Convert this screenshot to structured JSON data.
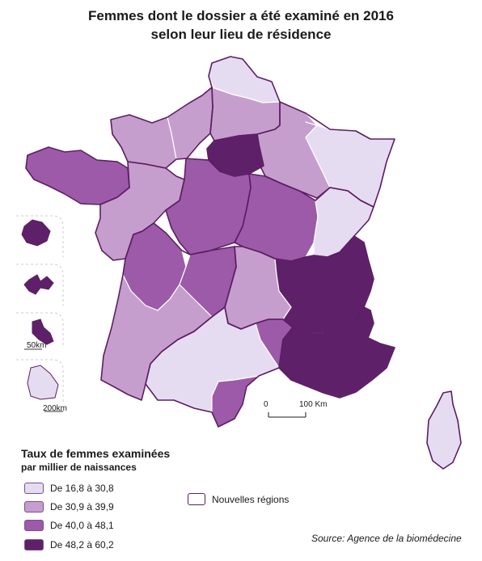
{
  "title_line1": "Femmes dont le dossier a été examiné en 2016",
  "title_line2": "selon leur lieu de résidence",
  "legend": {
    "title": "Taux de femmes examinées",
    "subtitle": "par millier de naissances",
    "classes": [
      {
        "label": "De 16,8 à 30,8",
        "color": "#e6dcf2"
      },
      {
        "label": "De 30,9 à 39,9",
        "color": "#c69ecd"
      },
      {
        "label": "De 40,0 à 48,1",
        "color": "#9c5aa8"
      },
      {
        "label": "De 48,2 à 60,2",
        "color": "#5e2169"
      }
    ],
    "regions_label": "Nouvelles régions"
  },
  "scale": {
    "zero": "0",
    "end": "100 Km"
  },
  "inset_scales": {
    "small": "50km",
    "large": "200km"
  },
  "source": "Source: Agence de la biomédecine",
  "colors": {
    "class1": "#e6dcf2",
    "class2": "#c69ecd",
    "class3": "#9c5aa8",
    "class4": "#5e2169",
    "region_border": "#5c1d63",
    "dept_border": "#ffffff"
  }
}
